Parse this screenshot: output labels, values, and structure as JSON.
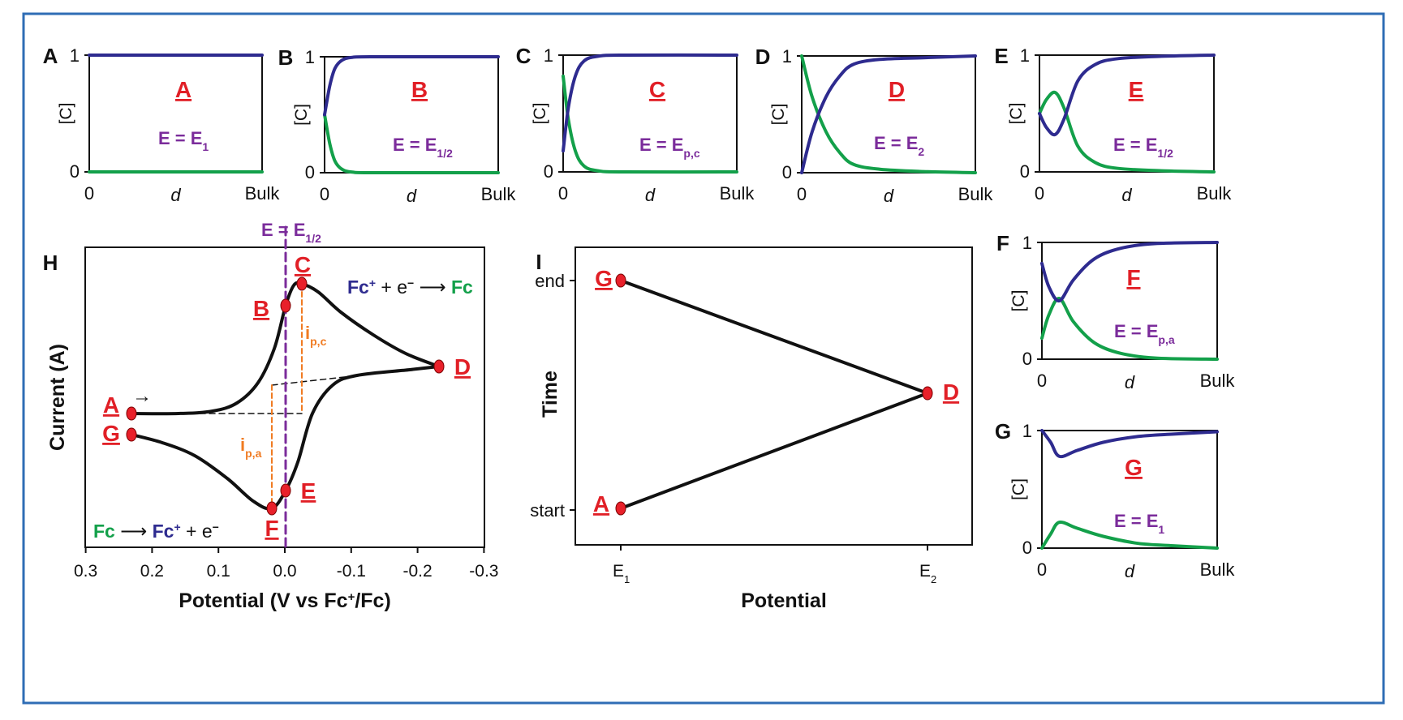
{
  "colors": {
    "frame": "#2f6db5",
    "oxidized": "#2e2b8f",
    "reduced": "#13a04a",
    "point_label": "#e11f26",
    "annotation": "#7b2c9b",
    "peak": "#f07b22",
    "point_fill": "#e8202a",
    "ink": "#111111"
  },
  "concentration_panels": [
    {
      "id": "A",
      "letter": "A",
      "label": "A",
      "condition_base": "E = E",
      "condition_sub": "1",
      "y_axis": "[C]",
      "y_ticks": [
        "1",
        "0"
      ],
      "x_ticks": [
        "0",
        "d",
        "Bulk"
      ]
    },
    {
      "id": "B",
      "letter": "B",
      "label": "B",
      "condition_base": "E = E",
      "condition_sub": "1/2",
      "y_axis": "[C]",
      "y_ticks": [
        "1",
        "0"
      ],
      "x_ticks": [
        "0",
        "d",
        "Bulk"
      ]
    },
    {
      "id": "C",
      "letter": "C",
      "label": "C",
      "condition_base": "E = E",
      "condition_sub": "p,c",
      "y_axis": "[C]",
      "y_ticks": [
        "1",
        "0"
      ],
      "x_ticks": [
        "0",
        "d",
        "Bulk"
      ]
    },
    {
      "id": "D",
      "letter": "D",
      "label": "D",
      "condition_base": "E = E",
      "condition_sub": "2",
      "y_axis": "[C]",
      "y_ticks": [
        "1",
        "0"
      ],
      "x_ticks": [
        "0",
        "d",
        "Bulk"
      ]
    },
    {
      "id": "E",
      "letter": "E",
      "label": "E",
      "condition_base": "E = E",
      "condition_sub": "1/2",
      "y_axis": "[C]",
      "y_ticks": [
        "1",
        "0"
      ],
      "x_ticks": [
        "0",
        "d",
        "Bulk"
      ]
    },
    {
      "id": "F",
      "letter": "F",
      "label": "F",
      "condition_base": "E = E",
      "condition_sub": "p,a",
      "y_axis": "[C]",
      "y_ticks": [
        "1",
        "0"
      ],
      "x_ticks": [
        "0",
        "d",
        "Bulk"
      ]
    },
    {
      "id": "G",
      "letter": "G",
      "label": "G",
      "condition_base": "E = E",
      "condition_sub": "1",
      "y_axis": "[C]",
      "y_ticks": [
        "1",
        "0"
      ],
      "x_ticks": [
        "0",
        "d",
        "Bulk"
      ]
    }
  ],
  "voltammogram": {
    "letter": "H",
    "y_axis": "Current (A)",
    "x_axis": "Potential (V vs Fc",
    "x_axis_sup": "+",
    "x_axis_end": "/Fc)",
    "x_ticks": [
      "0.3",
      "0.2",
      "0.1",
      "0.0",
      "-0.1",
      "-0.2",
      "-0.3"
    ],
    "half_wave_base": "E = E",
    "half_wave_sub": "1/2",
    "reduction_reactant": "Fc",
    "reduction_sup": "+",
    "reduction_rest": " + e",
    "reduction_esup": "−",
    "reduction_arrow": " ⟶ ",
    "reduction_product": "Fc",
    "oxidation_reactant": "Fc",
    "oxidation_arrow": " ⟶ ",
    "oxidation_product": "Fc",
    "oxidation_sup": "+",
    "oxidation_rest": " + e",
    "oxidation_esup": "−",
    "sweep_arrow": "→",
    "ipc_base": "i",
    "ipc_sub": "p,c",
    "ipa_base": "i",
    "ipa_sub": "p,a",
    "points": [
      "A",
      "B",
      "C",
      "D",
      "E",
      "F",
      "G"
    ]
  },
  "waveform": {
    "letter": "I",
    "y_axis": "Time",
    "x_axis": "Potential",
    "y_ticks": [
      "end",
      "start"
    ],
    "x_tick_base": "E",
    "x_tick_subs": [
      "1",
      "2"
    ],
    "points": [
      "G",
      "D",
      "A"
    ]
  }
}
